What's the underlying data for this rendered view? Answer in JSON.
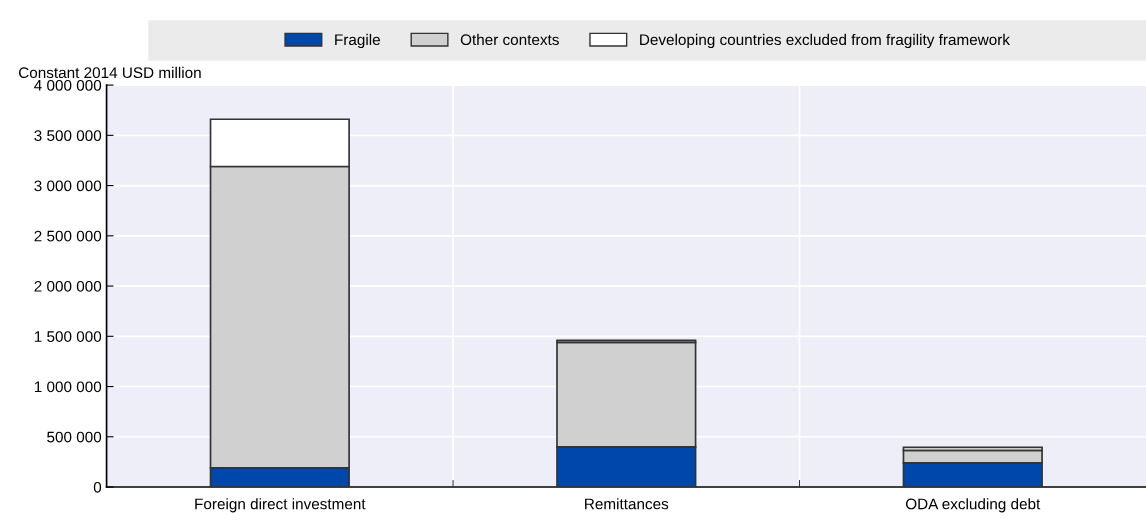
{
  "chart_data": {
    "type": "bar",
    "stacked": true,
    "ylabel": "Constant 2014 USD million",
    "categories": [
      "Foreign direct investment",
      "Remittances",
      "ODA excluding debt"
    ],
    "series": [
      {
        "name": "Fragile",
        "color": "#0047ab",
        "values": [
          190000,
          400000,
          240000
        ]
      },
      {
        "name": "Other contexts",
        "color": "#d0d0d0",
        "values": [
          3000000,
          1040000,
          125000
        ]
      },
      {
        "name": "Developing countries excluded from fragility framework",
        "color": "#ffffff",
        "values": [
          470000,
          20000,
          30000
        ]
      }
    ],
    "ylim": [
      0,
      4000000
    ],
    "yticks": [
      {
        "value": 0,
        "label": "0"
      },
      {
        "value": 500000,
        "label": "500 000"
      },
      {
        "value": 1000000,
        "label": "1 000 000"
      },
      {
        "value": 1500000,
        "label": "1 500 000"
      },
      {
        "value": 2000000,
        "label": "2 000 000"
      },
      {
        "value": 2500000,
        "label": "2 500 000"
      },
      {
        "value": 3000000,
        "label": "3 000 000"
      },
      {
        "value": 3500000,
        "label": "3 500 000"
      },
      {
        "value": 4000000,
        "label": "4 000 000"
      }
    ],
    "grid": true,
    "legend": "top"
  }
}
